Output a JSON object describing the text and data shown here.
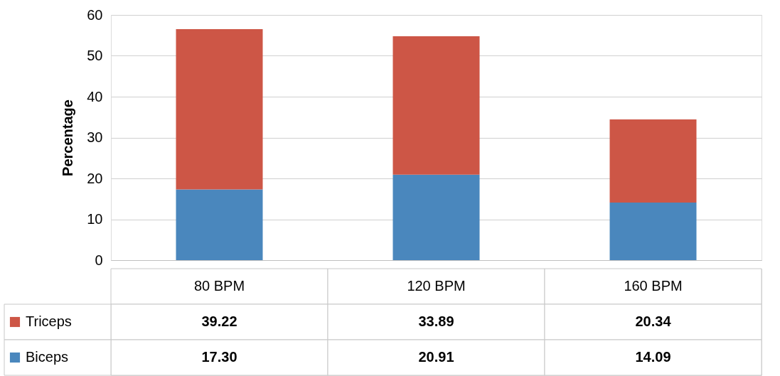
{
  "chart_data": {
    "type": "bar",
    "stacked": true,
    "ylabel": "Percentage",
    "categories": [
      "80 BPM",
      "120 BPM",
      "160 BPM"
    ],
    "series": [
      {
        "name": "Biceps",
        "color": "#4a87bd",
        "values": [
          17.3,
          20.91,
          14.09
        ],
        "value_labels": [
          "17.30",
          "20.91",
          "14.09"
        ]
      },
      {
        "name": "Triceps",
        "color": "#cd5646",
        "values": [
          39.22,
          33.89,
          20.34
        ],
        "value_labels": [
          "39.22",
          "33.89",
          "20.34"
        ]
      }
    ],
    "ylim": [
      0,
      60
    ],
    "yticks": [
      0,
      10,
      20,
      30,
      40,
      50,
      60
    ],
    "grid": "y",
    "legend": "bottom"
  }
}
